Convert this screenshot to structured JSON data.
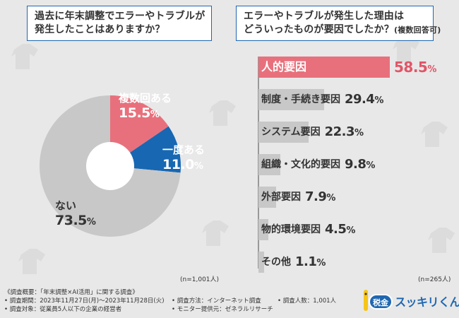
{
  "left_panel": {
    "title_line1": "過去に年末調整でエラーやトラブルが",
    "title_line2": "発生したことはありますか？",
    "n_note": "(n=1,001人)"
  },
  "right_panel": {
    "title_line1": "エラーやトラブルが発生した理由は",
    "title_line2": "どういったものが要因でしたか？",
    "title_suffix": "(複数回答可)",
    "n_note": "(n=265人)"
  },
  "pie_labels": {
    "nai_name": "ない",
    "nai_value": "73.5",
    "nai_unit": "%",
    "fukusu_name": "複数回ある",
    "fukusu_value": "15.5",
    "fukusu_unit": "%",
    "ichido_name": "一度ある",
    "ichido_value": "11.0",
    "ichido_unit": "%"
  },
  "bar_labels": [
    {
      "label": "人的要因",
      "value": "58.5",
      "unit": "%"
    },
    {
      "label": "制度・手続き要因",
      "value": "29.4",
      "unit": "%"
    },
    {
      "label": "システム要因",
      "value": "22.3",
      "unit": "%"
    },
    {
      "label": "組織・文化的要因",
      "value": "9.8",
      "unit": "%"
    },
    {
      "label": "外部要因",
      "value": "7.9",
      "unit": "%"
    },
    {
      "label": "物的環境要因",
      "value": "4.5",
      "unit": "%"
    },
    {
      "label": "その他",
      "value": "1.1",
      "unit": "%"
    }
  ],
  "footer": {
    "summary": "《調査概要：「年末調整×AI活用」に関する調査》",
    "period": "• 調査期間：2023年11月27日(月)～2023年11月28日(火)",
    "target": "• 調査対象：従業員5人以下の企業の経営者",
    "method": "• 調査方法：インターネット調査",
    "monitor": "• モニター提供元：ゼネラルリサーチ",
    "count": "• 調査人数：1,001人"
  },
  "logo": {
    "badge": "税金",
    "text": "スッキリくん"
  },
  "colors": {
    "pie_nai": "#c8c8c8",
    "pie_fukusu": "#e8707c",
    "pie_ichido": "#1767b3",
    "bar_default": "#c8c8c8",
    "bar_top": "#e8707c",
    "frame": "#1f67b1"
  },
  "chart_data": [
    {
      "type": "pie",
      "title": "過去に年末調整でエラーやトラブルが発生したことはありますか？",
      "categories": [
        "複数回ある",
        "一度ある",
        "ない"
      ],
      "values": [
        15.5,
        11.0,
        73.5
      ],
      "unit": "%",
      "n": "n=1,001人",
      "start": "top, clockwise"
    },
    {
      "type": "bar",
      "orientation": "horizontal",
      "title": "エラーやトラブルが発生した理由はどういったものが要因でしたか？(複数回答可)",
      "categories": [
        "人的要因",
        "制度・手続き要因",
        "システム要因",
        "組織・文化的要因",
        "外部要因",
        "物的環境要因",
        "その他"
      ],
      "values": [
        58.5,
        29.4,
        22.3,
        9.8,
        7.9,
        4.5,
        1.1
      ],
      "unit": "%",
      "xlim": [
        0,
        58.5
      ],
      "n": "n=265人"
    }
  ]
}
